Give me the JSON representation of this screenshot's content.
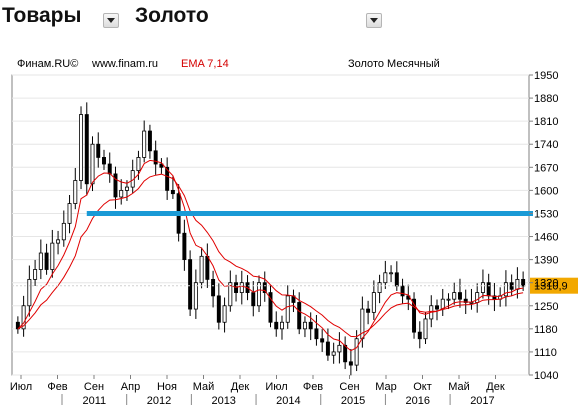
{
  "header": {
    "category_label": "Товары",
    "instrument_label": "Золото"
  },
  "chart_header": {
    "source": "Финам.RU©",
    "site": "www.finam.ru",
    "indicator": "EMA 7,14",
    "title": "Золото Месячный"
  },
  "colors": {
    "candle": "#000000",
    "ema": "#e00000",
    "level_line": "#1a9ad6",
    "price_tag": "#f2a800",
    "indicator_text": "#d40000"
  },
  "chart_data": {
    "type": "candlestick",
    "title": "Золото Месячный",
    "indicator": "EMA 7,14",
    "ylim": [
      1040,
      1950
    ],
    "yticks": [
      1950,
      1880,
      1810,
      1740,
      1670,
      1600,
      1530,
      1460,
      1390,
      1320,
      1250,
      1180,
      1110,
      1040
    ],
    "ytick_labels": [
      "1950",
      "1880",
      "1810",
      "1740",
      "1670",
      "1600",
      "1530",
      "1460",
      "1390",
      "1320",
      "1250",
      "1180",
      "1110",
      "1040"
    ],
    "last_price": 1310.9,
    "last_price_label": "1310,9",
    "horizontal_level": 1530,
    "month_labels": [
      "Июл",
      "Фев",
      "Сен",
      "Апр",
      "Ноя",
      "Май",
      "Дек",
      "Июл",
      "Фев",
      "Сен",
      "Мар",
      "Окт",
      "Май",
      "Дек"
    ],
    "year_labels": [
      "2011",
      "2012",
      "2013",
      "2014",
      "2015",
      "2016",
      "2017"
    ],
    "closes": [
      1180,
      1250,
      1330,
      1360,
      1410,
      1360,
      1440,
      1450,
      1500,
      1560,
      1630,
      1830,
      1620,
      1740,
      1700,
      1680,
      1650,
      1580,
      1600,
      1610,
      1660,
      1700,
      1780,
      1720,
      1680,
      1670,
      1600,
      1590,
      1470,
      1390,
      1240,
      1320,
      1400,
      1330,
      1280,
      1200,
      1250,
      1320,
      1290,
      1320,
      1290,
      1250,
      1320,
      1290,
      1200,
      1180,
      1200,
      1280,
      1260,
      1180,
      1200,
      1180,
      1150,
      1140,
      1100,
      1110,
      1130,
      1080,
      1070,
      1150,
      1240,
      1230,
      1290,
      1320,
      1350,
      1350,
      1310,
      1280,
      1270,
      1170,
      1150,
      1210,
      1250,
      1240,
      1270,
      1270,
      1290,
      1270,
      1260,
      1260,
      1290,
      1320,
      1280,
      1270,
      1280,
      1320,
      1300,
      1330,
      1310
    ]
  }
}
